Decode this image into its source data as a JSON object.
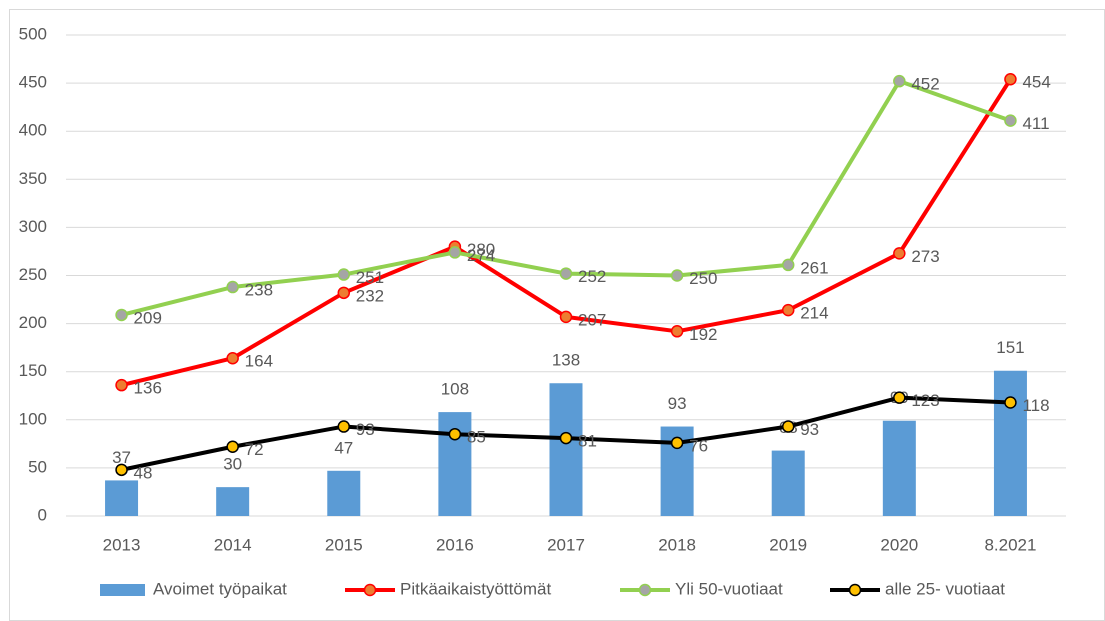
{
  "chart_data": {
    "type": "combo",
    "categories": [
      "2013",
      "2014",
      "2015",
      "2016",
      "2017",
      "2018",
      "2019",
      "2020",
      "8.2021"
    ],
    "series": [
      {
        "name": "Avoimet työpaikat",
        "type": "bar",
        "color": "#5b9bd5",
        "values": [
          37,
          30,
          47,
          108,
          138,
          93,
          68,
          99,
          151
        ]
      },
      {
        "name": "Pitkäaikaistyöttömät",
        "type": "line",
        "color": "#ff0000",
        "marker_color": "#ed7d31",
        "values": [
          136,
          164,
          232,
          280,
          207,
          192,
          214,
          273,
          454
        ]
      },
      {
        "name": "Yli 50-vuotiaat",
        "type": "line",
        "color": "#92d050",
        "marker_color": "#a5a5a5",
        "values": [
          209,
          238,
          251,
          274,
          252,
          250,
          261,
          452,
          411
        ]
      },
      {
        "name": "alle 25- vuotiaat",
        "type": "line",
        "color": "#000000",
        "marker_color": "#ffc000",
        "values": [
          48,
          72,
          93,
          85,
          81,
          76,
          93,
          123,
          118
        ]
      }
    ],
    "ylim": [
      0,
      500
    ],
    "yticks": [
      0,
      50,
      100,
      150,
      200,
      250,
      300,
      350,
      400,
      450,
      500
    ],
    "grid": true,
    "legend": "bottom"
  }
}
